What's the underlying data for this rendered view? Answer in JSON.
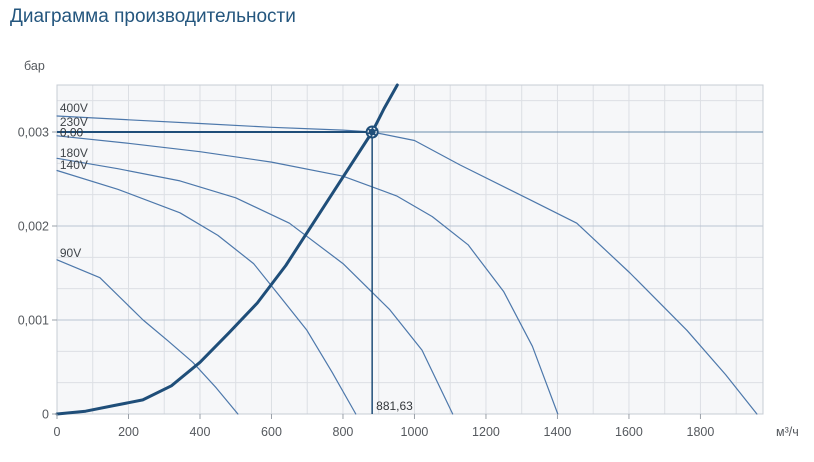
{
  "title": "Диаграмма производительности",
  "chart_data": {
    "type": "line",
    "title": "Диаграмма производительности",
    "x_axis": {
      "unit_label": "м³/ч",
      "min": 0,
      "max": 1975,
      "grid_step": 100,
      "label_step": 200,
      "tick_labels": [
        "0",
        "200",
        "400",
        "600",
        "800",
        "1000",
        "1200",
        "1400",
        "1600",
        "1800"
      ]
    },
    "y_axis": {
      "unit_label": "бар",
      "min": 0,
      "max": 0.0035,
      "minor_grid_step": 0.000333333,
      "label_values": [
        0,
        0.001,
        0.002,
        0.003
      ],
      "tick_labels": [
        "0",
        "0,001",
        "0,002",
        "0,003"
      ]
    },
    "series": [
      {
        "name": "400V",
        "role": "fan-curve",
        "points": [
          [
            0,
            0.00317
          ],
          [
            200,
            0.00313
          ],
          [
            400,
            0.00309
          ],
          [
            600,
            0.00305
          ],
          [
            800,
            0.00302
          ],
          [
            881.63,
            0.003
          ],
          [
            1000,
            0.00291
          ],
          [
            1127,
            0.00265
          ],
          [
            1323,
            0.00228
          ],
          [
            1454,
            0.00203
          ],
          [
            1603,
            0.0015
          ],
          [
            1762,
            0.00089
          ],
          [
            1870,
            0.00042
          ],
          [
            1958,
            0
          ]
        ]
      },
      {
        "name": "230V",
        "role": "fan-curve",
        "points": [
          [
            0,
            0.00296
          ],
          [
            200,
            0.00288
          ],
          [
            400,
            0.00279
          ],
          [
            600,
            0.00268
          ],
          [
            800,
            0.00253
          ],
          [
            950,
            0.00232
          ],
          [
            1050,
            0.0021
          ],
          [
            1150,
            0.0018
          ],
          [
            1250,
            0.0013
          ],
          [
            1330,
            0.00072
          ],
          [
            1401,
            0
          ]
        ]
      },
      {
        "name": "180V",
        "role": "fan-curve",
        "points": [
          [
            0,
            0.00272
          ],
          [
            170,
            0.00261
          ],
          [
            344,
            0.00248
          ],
          [
            500,
            0.0023
          ],
          [
            650,
            0.00203
          ],
          [
            800,
            0.0016
          ],
          [
            931,
            0.00111
          ],
          [
            1021,
            0.00068
          ],
          [
            1107,
            0
          ]
        ]
      },
      {
        "name": "140V",
        "role": "fan-curve",
        "points": [
          [
            0,
            0.00259
          ],
          [
            170,
            0.00239
          ],
          [
            344,
            0.00214
          ],
          [
            450,
            0.0019
          ],
          [
            550,
            0.0016
          ],
          [
            630,
            0.00122
          ],
          [
            699,
            0.00089
          ],
          [
            770,
            0.00044
          ],
          [
            836,
            0
          ]
        ]
      },
      {
        "name": "90V",
        "role": "fan-curve",
        "points": [
          [
            0,
            0.00164
          ],
          [
            120,
            0.00145
          ],
          [
            241,
            0.001
          ],
          [
            310,
            0.00078
          ],
          [
            380,
            0.00055
          ],
          [
            445,
            0.00028
          ],
          [
            506,
            0
          ]
        ]
      },
      {
        "name": "system",
        "role": "system-curve",
        "points": [
          [
            0,
            0
          ],
          [
            80,
            3e-05
          ],
          [
            160,
            9e-05
          ],
          [
            240,
            0.00015
          ],
          [
            320,
            0.0003
          ],
          [
            400,
            0.00055
          ],
          [
            480,
            0.00086
          ],
          [
            560,
            0.00118
          ],
          [
            640,
            0.00158
          ],
          [
            720,
            0.00205
          ],
          [
            800,
            0.00252
          ],
          [
            881.63,
            0.003
          ],
          [
            915,
            0.00325
          ],
          [
            952,
            0.0035
          ]
        ]
      }
    ],
    "curve_labels": [
      {
        "text": "400V",
        "q": 8,
        "p": 0.003255
      },
      {
        "text": "230V",
        "q": 8,
        "p": 0.003106
      },
      {
        "text": "180V",
        "q": 8,
        "p": 0.002777
      },
      {
        "text": "140V",
        "q": 8,
        "p": 0.002649
      },
      {
        "text": "90V",
        "q": 8,
        "p": 0.001713
      }
    ],
    "operating_point": {
      "flow": 881.63,
      "pressure": 0.003,
      "flow_label": "881,63",
      "pressure_label": "0,00"
    },
    "colors": {
      "fan_curve": "#4d78ab",
      "system_curve": "#1f4e79",
      "guide": "#1f4e79",
      "guide_thin": "#6b8cab",
      "grid_minor": "#dcdfe4",
      "grid_major_y": "#b9c4d2",
      "plot_bg": "#f6f7f9",
      "plot_border": "#c7ccd4",
      "axis_text": "#55595e",
      "curve_label_text": "#3f4449",
      "point_label_text": "#33373b",
      "title": "#24567e"
    }
  }
}
